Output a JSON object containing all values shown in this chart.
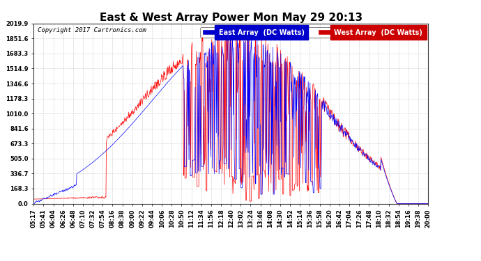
{
  "title": "East & West Array Power Mon May 29 20:13",
  "copyright": "Copyright 2017 Cartronics.com",
  "legend_east": "East Array  (DC Watts)",
  "legend_west": "West Array  (DC Watts)",
  "east_color": "#0000FF",
  "west_color": "#FF0000",
  "legend_east_bg": "#0000CC",
  "legend_west_bg": "#CC0000",
  "background_color": "#FFFFFF",
  "plot_bg_color": "#FFFFFF",
  "grid_color": "#BBBBBB",
  "ytick_labels": [
    "0.0",
    "168.3",
    "336.7",
    "505.0",
    "673.3",
    "841.6",
    "1010.0",
    "1178.3",
    "1346.6",
    "1514.9",
    "1683.3",
    "1851.6",
    "2019.9"
  ],
  "ytick_values": [
    0.0,
    168.3,
    336.7,
    505.0,
    673.3,
    841.6,
    1010.0,
    1178.3,
    1346.6,
    1514.9,
    1683.3,
    1851.6,
    2019.9
  ],
  "xtick_labels": [
    "05:17",
    "05:41",
    "06:04",
    "06:26",
    "06:48",
    "07:10",
    "07:32",
    "07:54",
    "08:16",
    "08:38",
    "09:00",
    "09:22",
    "09:44",
    "10:06",
    "10:28",
    "10:50",
    "11:12",
    "11:34",
    "11:56",
    "12:18",
    "12:40",
    "13:02",
    "13:24",
    "13:46",
    "14:08",
    "14:30",
    "14:52",
    "15:14",
    "15:36",
    "15:58",
    "16:20",
    "16:42",
    "17:04",
    "17:26",
    "17:48",
    "18:10",
    "18:32",
    "18:54",
    "19:16",
    "19:38",
    "20:00"
  ],
  "ymax": 2019.9,
  "ymin": 0.0,
  "title_fontsize": 11,
  "legend_fontsize": 7,
  "tick_fontsize": 6,
  "copyright_fontsize": 6.5
}
